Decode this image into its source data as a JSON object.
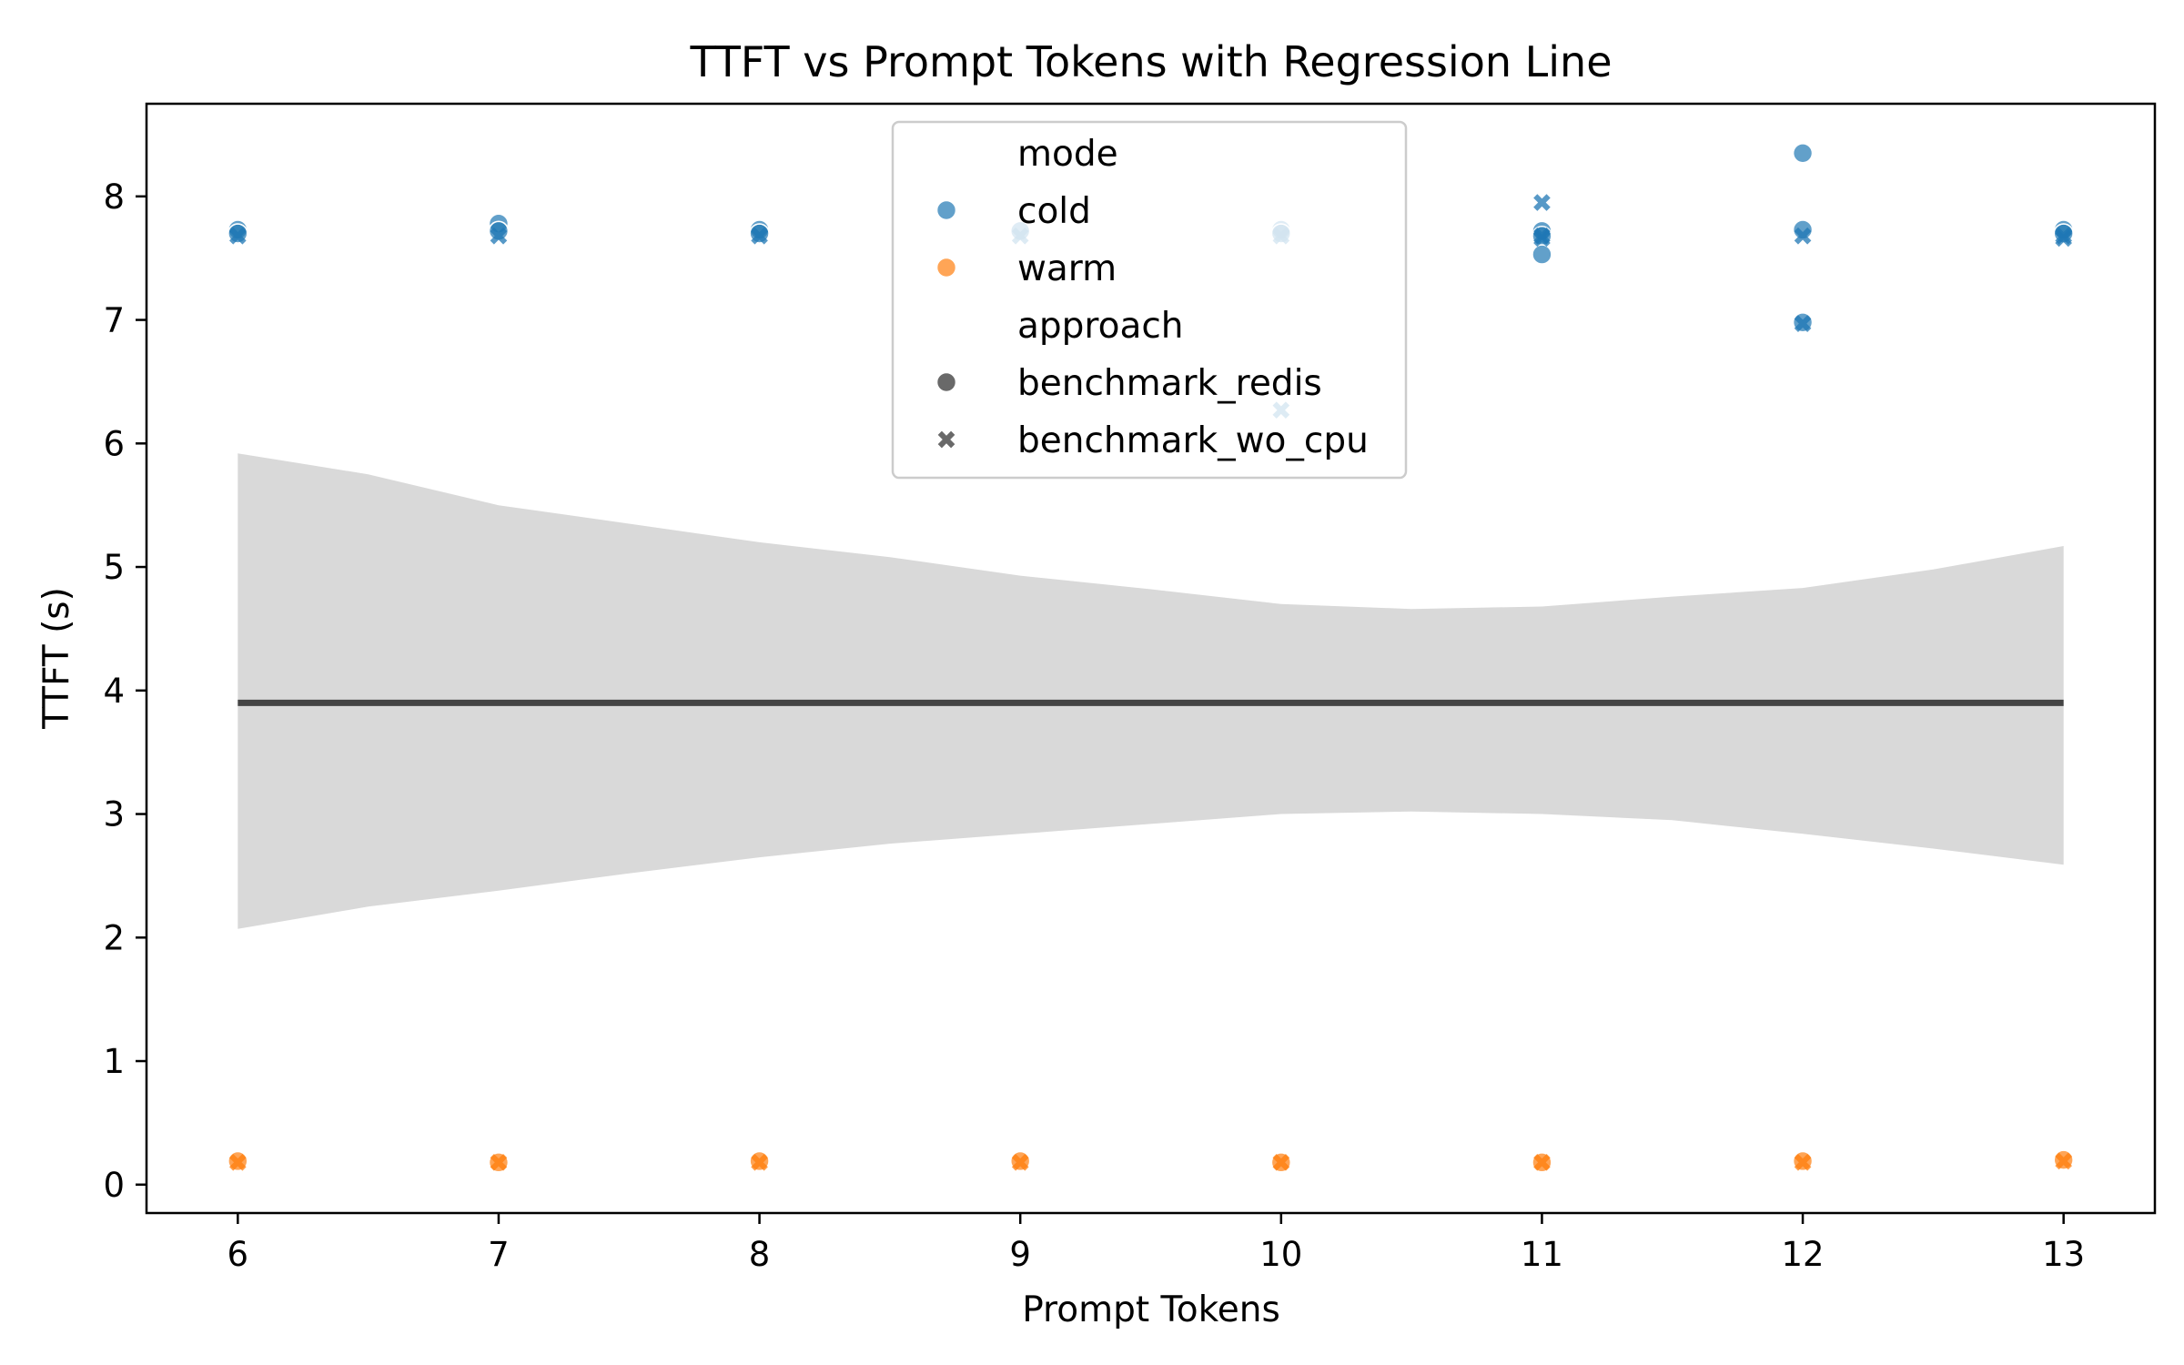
{
  "chart_data": {
    "type": "scatter",
    "title": "TTFT vs Prompt Tokens with Regression Line",
    "xlabel": "Prompt Tokens",
    "ylabel": "TTFT (s)",
    "xlim": [
      5.65,
      13.35
    ],
    "ylim": [
      -0.23,
      8.75
    ],
    "xticks": [
      6,
      7,
      8,
      9,
      10,
      11,
      12,
      13
    ],
    "yticks": [
      0,
      1,
      2,
      3,
      4,
      5,
      6,
      7,
      8
    ],
    "grid": false,
    "legend": {
      "placement": "top-center",
      "hue_title": "mode",
      "style_title": "approach",
      "entries": [
        {
          "kind": "title",
          "label": "mode"
        },
        {
          "kind": "hue",
          "label": "cold",
          "color": "#1f77b4"
        },
        {
          "kind": "hue",
          "label": "warm",
          "color": "#ff7f0e"
        },
        {
          "kind": "title",
          "label": "approach"
        },
        {
          "kind": "style",
          "label": "benchmark_redis",
          "marker": "circle"
        },
        {
          "kind": "style",
          "label": "benchmark_wo_cpu",
          "marker": "x"
        }
      ]
    },
    "colors": {
      "cold": "#1f77b4",
      "warm": "#ff7f0e",
      "regression": "#444444",
      "band": "#d9d9d9"
    },
    "series": [
      {
        "mode": "cold",
        "approach": "benchmark_redis",
        "marker": "circle",
        "points": [
          [
            6,
            7.73
          ],
          [
            6,
            7.7
          ],
          [
            7,
            7.78
          ],
          [
            7,
            7.72
          ],
          [
            8,
            7.73
          ],
          [
            8,
            7.7
          ],
          [
            9,
            7.72
          ],
          [
            10,
            7.73
          ],
          [
            10,
            7.7
          ],
          [
            11,
            7.72
          ],
          [
            11,
            7.68
          ],
          [
            11,
            7.53
          ],
          [
            12,
            8.35
          ],
          [
            12,
            7.73
          ],
          [
            12,
            6.98
          ],
          [
            13,
            7.73
          ],
          [
            13,
            7.7
          ]
        ]
      },
      {
        "mode": "cold",
        "approach": "benchmark_wo_cpu",
        "marker": "x",
        "points": [
          [
            6,
            7.68
          ],
          [
            7,
            7.68
          ],
          [
            8,
            7.68
          ],
          [
            9,
            7.68
          ],
          [
            10,
            7.68
          ],
          [
            10,
            6.27
          ],
          [
            11,
            7.95
          ],
          [
            11,
            7.68
          ],
          [
            11,
            7.66
          ],
          [
            12,
            7.68
          ],
          [
            12,
            6.97
          ],
          [
            13,
            7.68
          ],
          [
            13,
            7.66
          ]
        ]
      },
      {
        "mode": "warm",
        "approach": "benchmark_redis",
        "marker": "circle",
        "points": [
          [
            6,
            0.19
          ],
          [
            7,
            0.18
          ],
          [
            8,
            0.19
          ],
          [
            9,
            0.19
          ],
          [
            10,
            0.18
          ],
          [
            11,
            0.18
          ],
          [
            12,
            0.19
          ],
          [
            13,
            0.2
          ]
        ]
      },
      {
        "mode": "warm",
        "approach": "benchmark_wo_cpu",
        "marker": "x",
        "points": [
          [
            6,
            0.18
          ],
          [
            7,
            0.18
          ],
          [
            8,
            0.18
          ],
          [
            9,
            0.18
          ],
          [
            10,
            0.18
          ],
          [
            11,
            0.18
          ],
          [
            12,
            0.18
          ],
          [
            13,
            0.19
          ]
        ]
      }
    ],
    "regression": {
      "x": [
        6,
        13
      ],
      "y": [
        3.9,
        3.9
      ],
      "ci_band": {
        "x": [
          6,
          6.5,
          7,
          7.5,
          8,
          8.5,
          9,
          9.5,
          10,
          10.5,
          11,
          11.5,
          12,
          12.5,
          13
        ],
        "upper": [
          5.92,
          5.75,
          5.5,
          5.35,
          5.2,
          5.08,
          4.93,
          4.82,
          4.7,
          4.66,
          4.68,
          4.76,
          4.83,
          4.98,
          5.17
        ],
        "lower": [
          2.07,
          2.25,
          2.38,
          2.52,
          2.65,
          2.76,
          2.84,
          2.92,
          3.0,
          3.02,
          3.0,
          2.95,
          2.84,
          2.72,
          2.59
        ]
      }
    }
  }
}
